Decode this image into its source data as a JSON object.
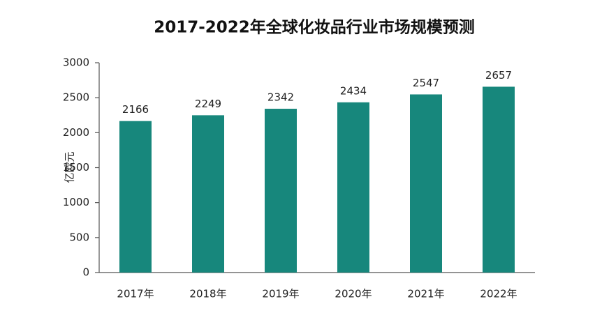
{
  "chart_data": {
    "type": "bar",
    "title": "2017-2022年全球化妆品行业市场规模预测",
    "y_label": "亿欧元",
    "categories": [
      "2017年",
      "2018年",
      "2019年",
      "2020年",
      "2021年",
      "2022年"
    ],
    "values": [
      2166,
      2249,
      2342,
      2434,
      2547,
      2657
    ],
    "color": "#17877c",
    "ylim": [
      0,
      3000
    ],
    "yticks": [
      0,
      500,
      1000,
      1500,
      2000,
      2500,
      3000
    ],
    "grid": false
  }
}
